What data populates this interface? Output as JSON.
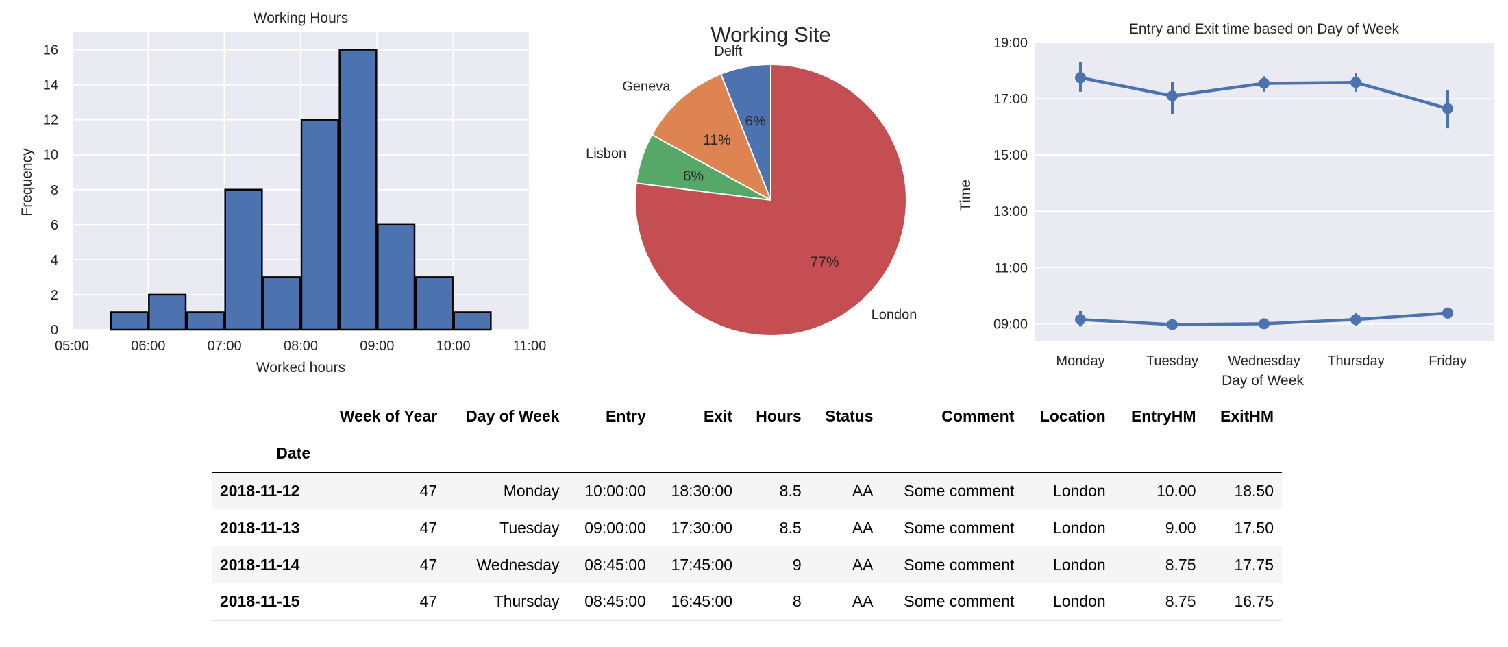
{
  "chart_data": [
    {
      "type": "bar",
      "title": "Working Hours",
      "xlabel": "Worked hours",
      "ylabel": "Frequency",
      "xlim": [
        5.0,
        11.0
      ],
      "ylim": [
        0,
        17
      ],
      "x_ticks": [
        "05:00",
        "06:00",
        "07:00",
        "08:00",
        "09:00",
        "10:00",
        "11:00"
      ],
      "y_ticks": [
        "0",
        "2",
        "4",
        "6",
        "8",
        "10",
        "12",
        "14",
        "16"
      ],
      "bins": [
        {
          "start": 5.5,
          "end": 6.0,
          "count": 1
        },
        {
          "start": 6.0,
          "end": 6.5,
          "count": 2
        },
        {
          "start": 6.5,
          "end": 7.0,
          "count": 1
        },
        {
          "start": 7.0,
          "end": 7.5,
          "count": 8
        },
        {
          "start": 7.5,
          "end": 8.0,
          "count": 3
        },
        {
          "start": 8.0,
          "end": 8.5,
          "count": 12
        },
        {
          "start": 8.5,
          "end": 9.0,
          "count": 16
        },
        {
          "start": 9.0,
          "end": 9.5,
          "count": 6
        },
        {
          "start": 9.5,
          "end": 10.0,
          "count": 3
        },
        {
          "start": 10.0,
          "end": 10.5,
          "count": 1
        }
      ],
      "bar_color": "#4c72b0"
    },
    {
      "type": "pie",
      "title": "Working Site",
      "slices": [
        {
          "label": "Delft",
          "value": 6,
          "pct_label": "6%",
          "color": "#4c72b0"
        },
        {
          "label": "Geneva",
          "value": 11,
          "pct_label": "11%",
          "color": "#dd8452"
        },
        {
          "label": "Lisbon",
          "value": 6,
          "pct_label": "6%",
          "color": "#55a868"
        },
        {
          "label": "London",
          "value": 77,
          "pct_label": "77%",
          "color": "#c44e52"
        }
      ]
    },
    {
      "type": "line",
      "title": "Entry and Exit time based on Day of Week",
      "xlabel": "Day of Week",
      "ylabel": "Time",
      "categories": [
        "Monday",
        "Tuesday",
        "Wednesday",
        "Thursday",
        "Friday"
      ],
      "ylim": [
        8.4,
        19.0
      ],
      "y_ticks": [
        {
          "value": 9,
          "label": "09:00"
        },
        {
          "value": 11,
          "label": "11:00"
        },
        {
          "value": 13,
          "label": "13:00"
        },
        {
          "value": 15,
          "label": "15:00"
        },
        {
          "value": 17,
          "label": "17:00"
        },
        {
          "value": 19,
          "label": "19:00"
        }
      ],
      "series": [
        {
          "name": "Exit",
          "values": [
            17.75,
            17.1,
            17.55,
            17.58,
            16.65
          ],
          "err_low": [
            17.25,
            16.45,
            17.25,
            17.25,
            15.95
          ],
          "err_high": [
            18.3,
            17.6,
            17.8,
            17.9,
            17.3
          ]
        },
        {
          "name": "Entry",
          "values": [
            9.15,
            8.97,
            9.0,
            9.15,
            9.38
          ],
          "err_low": [
            8.9,
            8.85,
            8.85,
            8.92,
            9.22
          ],
          "err_high": [
            9.45,
            9.08,
            9.15,
            9.4,
            9.52
          ]
        }
      ],
      "line_color": "#4c72b0"
    }
  ],
  "table": {
    "columns": [
      "Week of Year",
      "Day of Week",
      "Entry",
      "Exit",
      "Hours",
      "Status",
      "Comment",
      "Location",
      "EntryHM",
      "ExitHM"
    ],
    "index_name": "Date",
    "rows": [
      {
        "index": "2018-11-12",
        "cells": [
          "47",
          "Monday",
          "10:00:00",
          "18:30:00",
          "8.5",
          "AA",
          "Some comment",
          "London",
          "10.00",
          "18.50"
        ]
      },
      {
        "index": "2018-11-13",
        "cells": [
          "47",
          "Tuesday",
          "09:00:00",
          "17:30:00",
          "8.5",
          "AA",
          "Some comment",
          "London",
          "9.00",
          "17.50"
        ]
      },
      {
        "index": "2018-11-14",
        "cells": [
          "47",
          "Wednesday",
          "08:45:00",
          "17:45:00",
          "9",
          "AA",
          "Some comment",
          "London",
          "8.75",
          "17.75"
        ]
      },
      {
        "index": "2018-11-15",
        "cells": [
          "47",
          "Thursday",
          "08:45:00",
          "16:45:00",
          "8",
          "AA",
          "Some comment",
          "London",
          "8.75",
          "16.75"
        ]
      }
    ]
  }
}
